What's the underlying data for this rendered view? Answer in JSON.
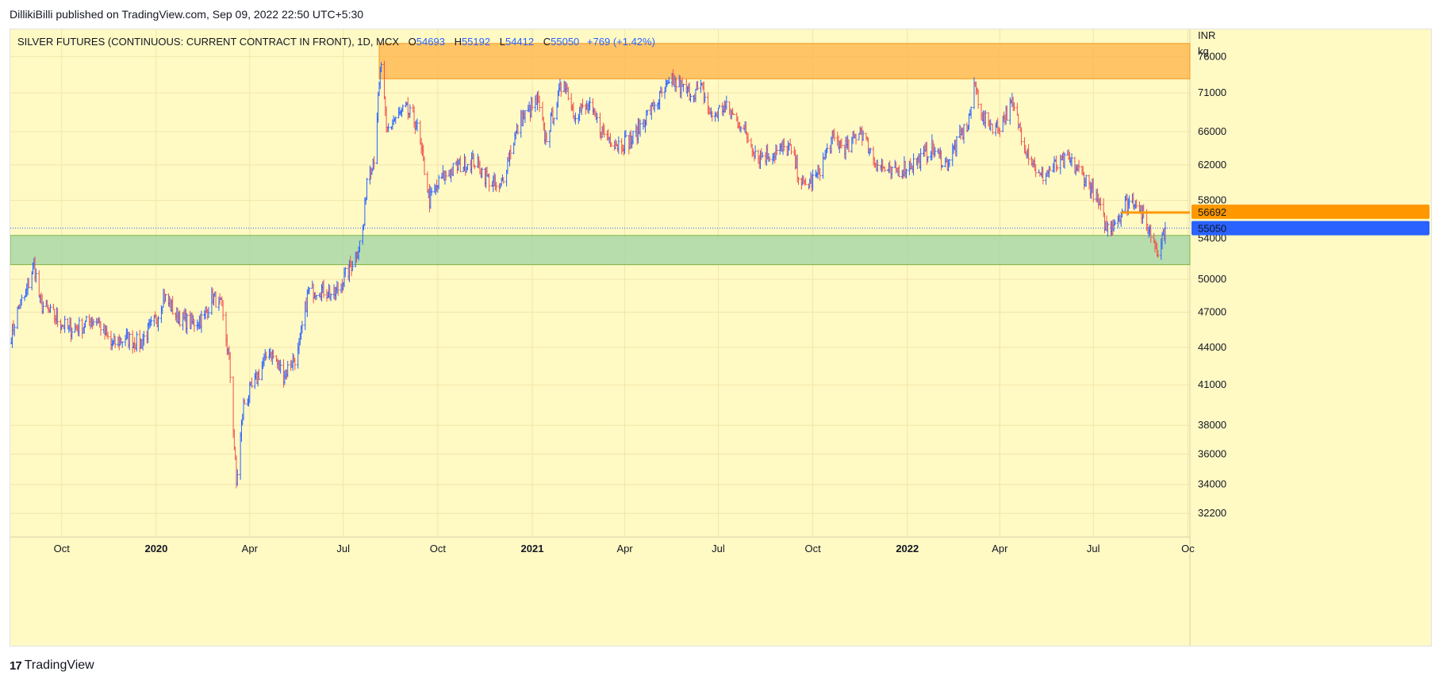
{
  "header": {
    "published_by": "DillikiBilli published on TradingView.com, Sep 09, 2022 22:50 UTC+5:30"
  },
  "legend": {
    "symbol": "SILVER FUTURES (CONTINUOUS: CURRENT CONTRACT IN FRONT), 1D, MCX",
    "o_label": "O",
    "o_value": "54693",
    "h_label": "H",
    "h_value": "55192",
    "l_label": "L",
    "l_value": "54412",
    "c_label": "C",
    "c_value": "55050",
    "change": "+769 (+1.42%)"
  },
  "axis": {
    "currency": "INR",
    "unit": "kg"
  },
  "price_tags": {
    "resistance_line_value": "56692",
    "last_price_value": "55050"
  },
  "footer": {
    "brand": "TradingView"
  },
  "colors": {
    "background": "#fff9c4",
    "up_bar": "#2962ff",
    "down_bar": "#ef5350",
    "supply_zone": "#ffb74d",
    "demand_zone": "#a5d6a7",
    "orange_line": "#ff9800",
    "last_price_tag": "#2962ff"
  },
  "chart_data": {
    "type": "ohlc-bar",
    "title": "SILVER FUTURES (CONTINUOUS: CURRENT CONTRACT IN FRONT), 1D, MCX",
    "y_scale": "log",
    "ylim": [
      30800,
      80000
    ],
    "y_ticks": [
      32200,
      34000,
      36000,
      38000,
      41000,
      44000,
      47000,
      50000,
      54000,
      58000,
      62000,
      66000,
      71000,
      76000
    ],
    "x_ticks": [
      {
        "label": "Oct",
        "date": "2019-10-01",
        "bold": false
      },
      {
        "label": "2020",
        "date": "2020-01-01",
        "bold": true
      },
      {
        "label": "Apr",
        "date": "2020-04-01",
        "bold": false
      },
      {
        "label": "Jul",
        "date": "2020-07-01",
        "bold": false
      },
      {
        "label": "Oct",
        "date": "2020-10-01",
        "bold": false
      },
      {
        "label": "2021",
        "date": "2021-01-01",
        "bold": true
      },
      {
        "label": "Apr",
        "date": "2021-04-01",
        "bold": false
      },
      {
        "label": "Jul",
        "date": "2021-07-01",
        "bold": false
      },
      {
        "label": "Oct",
        "date": "2021-10-01",
        "bold": false
      },
      {
        "label": "2022",
        "date": "2022-01-01",
        "bold": true
      },
      {
        "label": "Apr",
        "date": "2022-04-01",
        "bold": false
      },
      {
        "label": "Jul",
        "date": "2022-07-01",
        "bold": false
      },
      {
        "label": "Oc",
        "date": "2022-10-01",
        "bold": false
      }
    ],
    "xlim": [
      "2019-08-12",
      "2022-10-03"
    ],
    "grid": true,
    "zones": [
      {
        "kind": "supply",
        "from": "2020-08-05",
        "to": "2022-10-03",
        "low": 72900,
        "high": 77900
      },
      {
        "kind": "demand",
        "from": "2019-08-12",
        "to": "2022-10-03",
        "low": 51400,
        "high": 54300
      }
    ],
    "lines": [
      {
        "kind": "resistance",
        "from": "2022-07-28",
        "to": "2022-10-03",
        "value": 56692
      },
      {
        "kind": "last-price",
        "from": "2019-08-12",
        "to": "2022-10-03",
        "value": 55050
      }
    ],
    "close_path": [
      [
        "2019-08-13",
        45000
      ],
      [
        "2019-08-20",
        47500
      ],
      [
        "2019-08-27",
        48500
      ],
      [
        "2019-09-04",
        51500
      ],
      [
        "2019-09-10",
        47800
      ],
      [
        "2019-09-18",
        47000
      ],
      [
        "2019-09-26",
        46500
      ],
      [
        "2019-10-07",
        45500
      ],
      [
        "2019-10-21",
        45800
      ],
      [
        "2019-11-04",
        46500
      ],
      [
        "2019-11-18",
        44200
      ],
      [
        "2019-12-02",
        44800
      ],
      [
        "2019-12-16",
        44300
      ],
      [
        "2020-01-02",
        46500
      ],
      [
        "2020-01-08",
        48500
      ],
      [
        "2020-01-20",
        46800
      ],
      [
        "2020-02-03",
        46000
      ],
      [
        "2020-02-17",
        46500
      ],
      [
        "2020-02-25",
        48500
      ],
      [
        "2020-03-04",
        47500
      ],
      [
        "2020-03-12",
        43000
      ],
      [
        "2020-03-19",
        34000
      ],
      [
        "2020-03-26",
        39500
      ],
      [
        "2020-04-08",
        41500
      ],
      [
        "2020-04-20",
        43800
      ],
      [
        "2020-05-04",
        41800
      ],
      [
        "2020-05-18",
        43500
      ],
      [
        "2020-05-28",
        48800
      ],
      [
        "2020-06-08",
        49200
      ],
      [
        "2020-06-22",
        48500
      ],
      [
        "2020-07-06",
        50800
      ],
      [
        "2020-07-16",
        53000
      ],
      [
        "2020-07-21",
        55500
      ],
      [
        "2020-07-24",
        60500
      ],
      [
        "2020-07-31",
        63000
      ],
      [
        "2020-08-07",
        75000
      ],
      [
        "2020-08-12",
        66000
      ],
      [
        "2020-08-20",
        67500
      ],
      [
        "2020-08-31",
        68800
      ],
      [
        "2020-09-10",
        67000
      ],
      [
        "2020-09-23",
        58000
      ],
      [
        "2020-10-05",
        60500
      ],
      [
        "2020-10-20",
        61800
      ],
      [
        "2020-11-05",
        62500
      ],
      [
        "2020-11-16",
        60800
      ],
      [
        "2020-11-30",
        59000
      ],
      [
        "2020-12-10",
        63500
      ],
      [
        "2020-12-21",
        67500
      ],
      [
        "2021-01-06",
        69800
      ],
      [
        "2021-01-14",
        65000
      ],
      [
        "2021-02-01",
        73000
      ],
      [
        "2021-02-10",
        68500
      ],
      [
        "2021-02-25",
        69000
      ],
      [
        "2021-03-10",
        66000
      ],
      [
        "2021-03-25",
        64500
      ],
      [
        "2021-04-08",
        65000
      ],
      [
        "2021-04-22",
        68000
      ],
      [
        "2021-05-06",
        70500
      ],
      [
        "2021-05-18",
        72500
      ],
      [
        "2021-06-01",
        71000
      ],
      [
        "2021-06-15",
        71500
      ],
      [
        "2021-06-24",
        67800
      ],
      [
        "2021-07-07",
        69200
      ],
      [
        "2021-07-22",
        67000
      ],
      [
        "2021-08-09",
        63000
      ],
      [
        "2021-08-25",
        63500
      ],
      [
        "2021-09-08",
        64000
      ],
      [
        "2021-09-22",
        59500
      ],
      [
        "2021-10-04",
        60500
      ],
      [
        "2021-10-20",
        65000
      ],
      [
        "2021-11-05",
        64000
      ],
      [
        "2021-11-16",
        66500
      ],
      [
        "2021-11-30",
        62500
      ],
      [
        "2021-12-15",
        61000
      ],
      [
        "2021-12-30",
        61800
      ],
      [
        "2022-01-12",
        62500
      ],
      [
        "2022-01-25",
        64000
      ],
      [
        "2022-02-08",
        62000
      ],
      [
        "2022-02-18",
        64500
      ],
      [
        "2022-03-01",
        67000
      ],
      [
        "2022-03-08",
        72000
      ],
      [
        "2022-03-16",
        67500
      ],
      [
        "2022-03-30",
        66500
      ],
      [
        "2022-04-13",
        69500
      ],
      [
        "2022-04-25",
        64500
      ],
      [
        "2022-05-10",
        60500
      ],
      [
        "2022-05-20",
        61500
      ],
      [
        "2022-06-06",
        62500
      ],
      [
        "2022-06-20",
        61000
      ],
      [
        "2022-07-01",
        59000
      ],
      [
        "2022-07-14",
        55000
      ],
      [
        "2022-07-22",
        55800
      ],
      [
        "2022-08-01",
        57500
      ],
      [
        "2022-08-12",
        58200
      ],
      [
        "2022-08-19",
        56000
      ],
      [
        "2022-08-29",
        53800
      ],
      [
        "2022-09-01",
        52800
      ],
      [
        "2022-09-09",
        55050
      ]
    ]
  }
}
